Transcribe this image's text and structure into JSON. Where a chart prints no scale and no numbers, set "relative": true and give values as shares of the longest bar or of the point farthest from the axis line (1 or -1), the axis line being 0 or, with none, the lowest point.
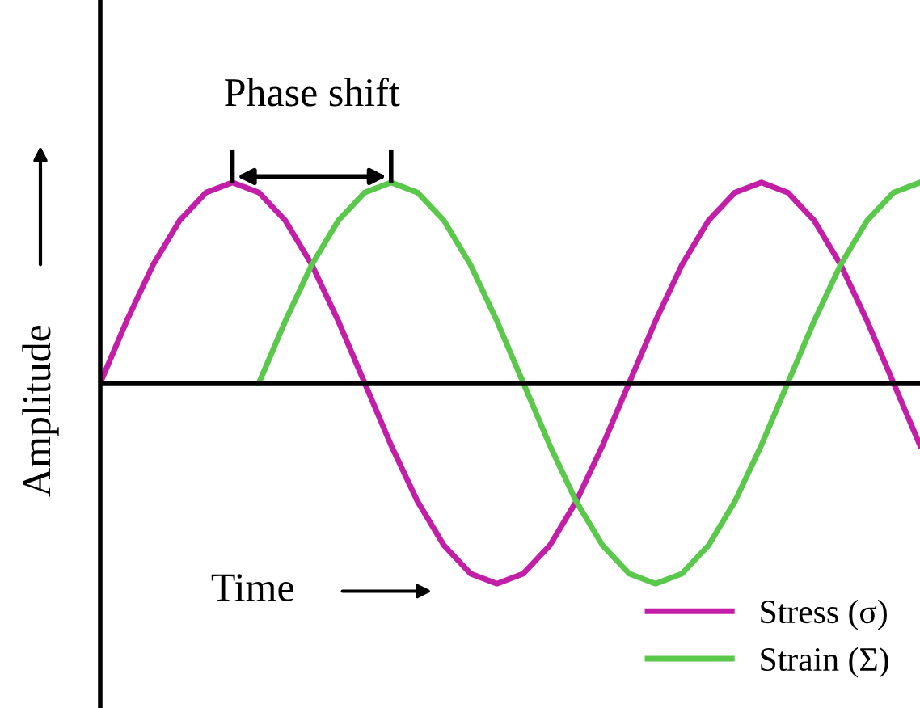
{
  "chart_data": {
    "type": "line",
    "relative": true,
    "ylabel": "Amplitude",
    "annotations": [
      "Phase shift",
      "Time"
    ],
    "categories": [
      null,
      null,
      null,
      null,
      null,
      null,
      null,
      null,
      null,
      null,
      null,
      null,
      null,
      null,
      null,
      null,
      null,
      null,
      null,
      null,
      null,
      null,
      null,
      null,
      null,
      null,
      null,
      null,
      null,
      null,
      null,
      null
    ],
    "series": [
      {
        "name": "Stress (σ)",
        "color": "#c21ea8",
        "values": [
          0,
          0.31,
          0.59,
          0.81,
          0.95,
          1,
          0.95,
          0.81,
          0.59,
          0.31,
          0,
          -0.31,
          -0.59,
          -0.81,
          -0.95,
          -1,
          -0.95,
          -0.81,
          -0.59,
          -0.31,
          0,
          0.31,
          0.59,
          0.81,
          0.95,
          1,
          0.95,
          0.81,
          0.59,
          0.31,
          0,
          -0.31
        ]
      },
      {
        "name": "Strain (Σ)",
        "color": "#5ac84a",
        "values": [
          null,
          null,
          null,
          null,
          null,
          null,
          0,
          0.31,
          0.59,
          0.81,
          0.95,
          1,
          0.95,
          0.81,
          0.59,
          0.31,
          0,
          -0.31,
          -0.59,
          -0.81,
          -0.95,
          -1,
          -0.95,
          -0.81,
          -0.59,
          -0.31,
          0,
          0.31,
          0.59,
          0.81,
          0.95,
          1
        ]
      }
    ],
    "legend": "bottom right",
    "marker": "none",
    "line_style": "solid"
  }
}
